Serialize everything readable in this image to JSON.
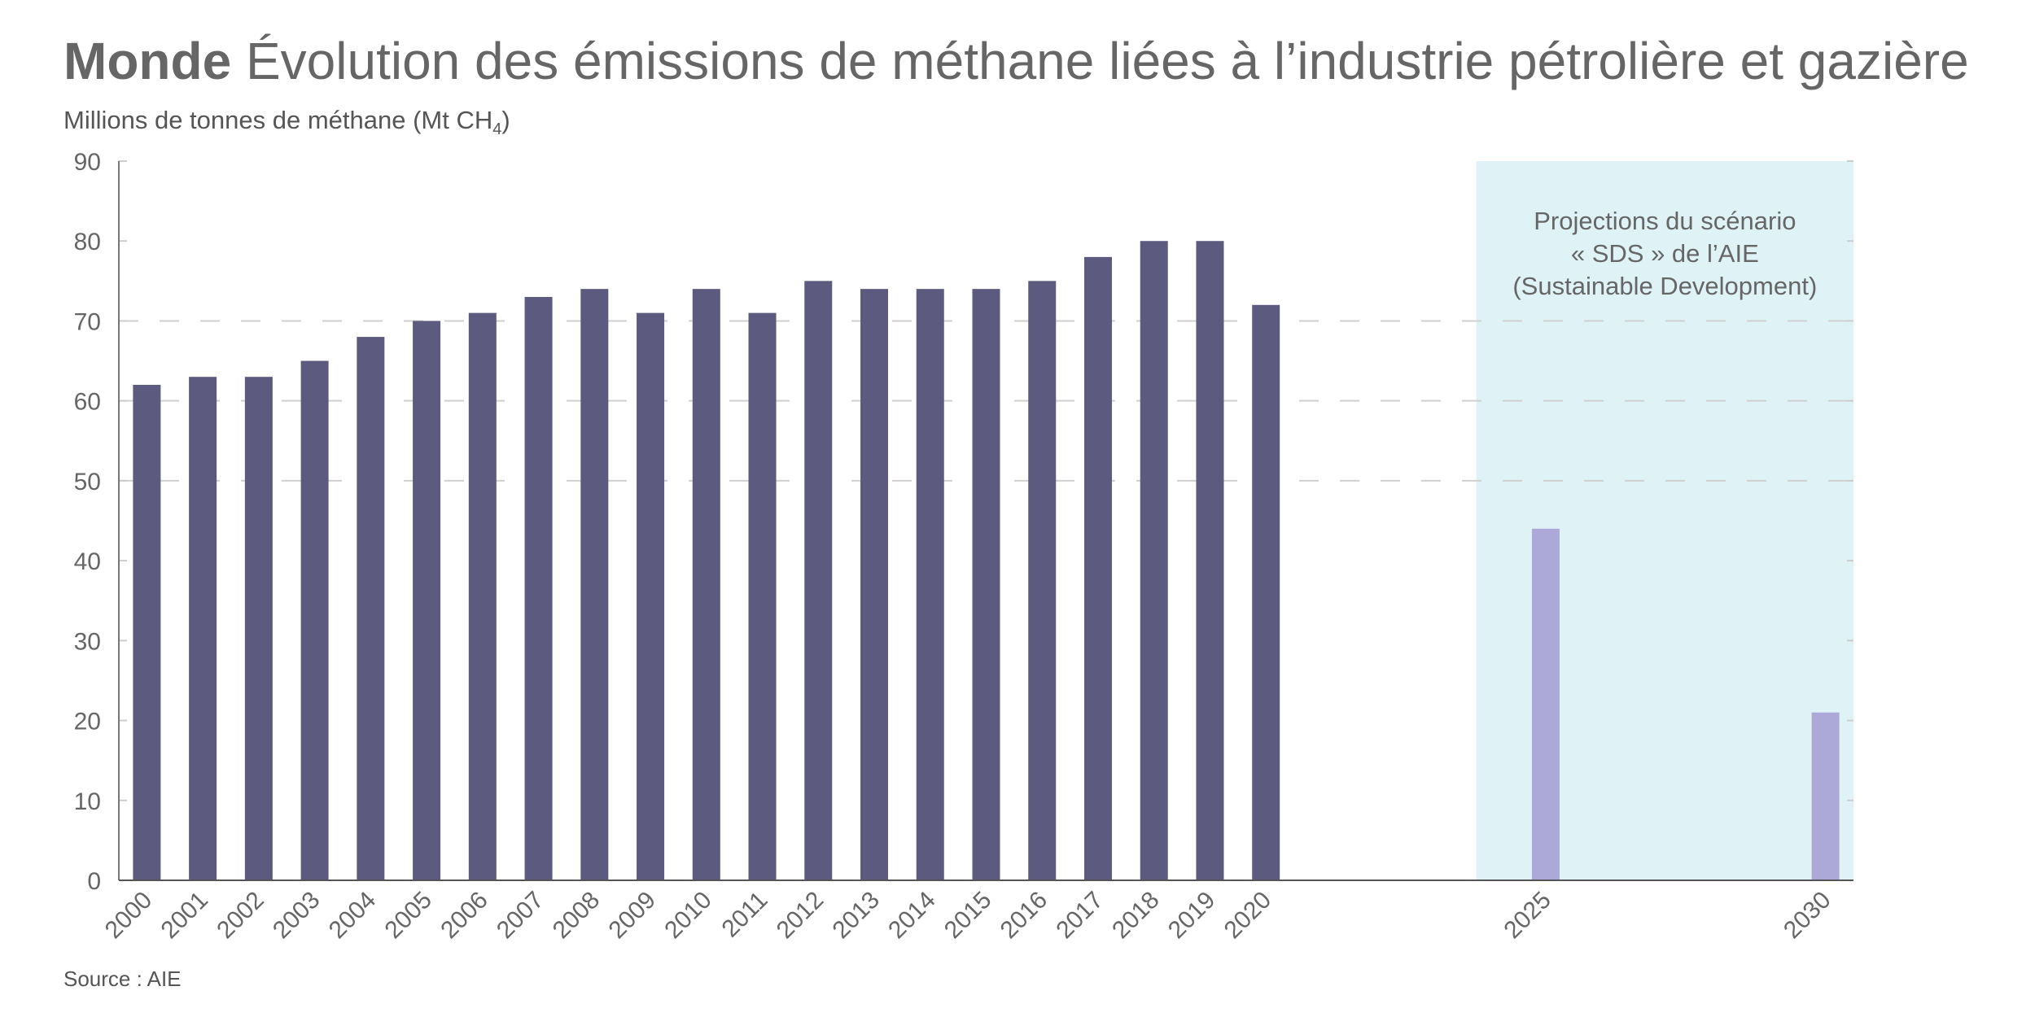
{
  "header": {
    "title_bold": "Monde",
    "title_rest": "Évolution des émissions de méthane liées à l’industrie pétrolière et gazière",
    "subtitle_main": "Millions de tonnes de méthane (Mt CH",
    "subtitle_sub": "4",
    "subtitle_end": ")"
  },
  "footer": {
    "source": "Source : AIE"
  },
  "colors": {
    "historical": "#5c5a7f",
    "projection": "#aca8d8",
    "projection_zone": "#dff3f6",
    "text": "#666666"
  },
  "chart_data": {
    "type": "bar",
    "title": "Évolution des émissions de méthane liées à l’industrie pétrolière et gazière",
    "ylabel": "Millions de tonnes de méthane (Mt CH4)",
    "xlabel": "",
    "ylim": [
      0,
      90
    ],
    "yticks": [
      0,
      10,
      20,
      30,
      40,
      50,
      60,
      70,
      80,
      90
    ],
    "grid": "horizontal dashed",
    "categories": [
      "2000",
      "2001",
      "2002",
      "2003",
      "2004",
      "2005",
      "2006",
      "2007",
      "2008",
      "2009",
      "2010",
      "2011",
      "2012",
      "2013",
      "2014",
      "2015",
      "2016",
      "2017",
      "2018",
      "2019",
      "2020",
      "2025",
      "2030"
    ],
    "series": [
      {
        "kind": "historical",
        "x": [
          2000,
          2001,
          2002,
          2003,
          2004,
          2005,
          2006,
          2007,
          2008,
          2009,
          2010,
          2011,
          2012,
          2013,
          2014,
          2015,
          2016,
          2017,
          2018,
          2019,
          2020
        ],
        "values": [
          62,
          63,
          63,
          65,
          68,
          70,
          71,
          73,
          74,
          71,
          74,
          71,
          75,
          74,
          74,
          74,
          75,
          78,
          80,
          80,
          72
        ]
      },
      {
        "kind": "projection",
        "x": [
          2025,
          2030
        ],
        "values": [
          44,
          21
        ]
      }
    ],
    "annotation": {
      "lines": [
        "Projections du scénario",
        "« SDS » de l’AIE",
        "(Sustainable Development)"
      ]
    }
  }
}
